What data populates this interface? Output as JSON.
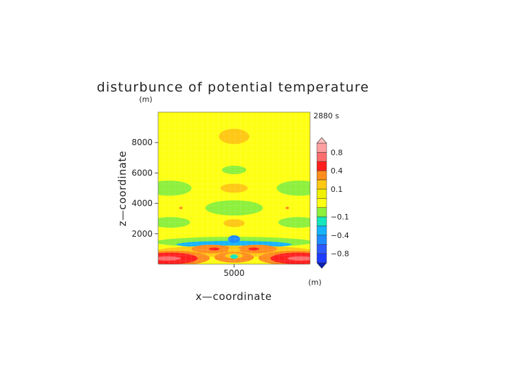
{
  "chart_data": {
    "type": "heatmap",
    "title": "disturbunce of potential temperature",
    "xlabel": "x—coordinate",
    "ylabel": "z—coordinate",
    "x_unit": "(m)",
    "y_unit": "(m)",
    "time_label": "2880 s",
    "x_range": [
      0,
      10000
    ],
    "y_range": [
      0,
      10000
    ],
    "x_ticks": [
      {
        "value": 5000,
        "label": "5000"
      }
    ],
    "y_ticks": [
      {
        "value": 2000,
        "label": "2000"
      },
      {
        "value": 4000,
        "label": "4000"
      },
      {
        "value": 6000,
        "label": "6000"
      },
      {
        "value": 8000,
        "label": "8000"
      }
    ],
    "background_level": 0.0,
    "colorbar": {
      "levels": [
        {
          "lo": -1.0,
          "hi": -0.8,
          "color": "#1e3cff"
        },
        {
          "lo": -0.8,
          "hi": -0.6,
          "color": "#2d5aff"
        },
        {
          "lo": -0.6,
          "hi": -0.4,
          "color": "#1e8cff"
        },
        {
          "lo": -0.4,
          "hi": -0.2,
          "color": "#14b4ff"
        },
        {
          "lo": -0.2,
          "hi": -0.1,
          "color": "#14e6be"
        },
        {
          "lo": -0.1,
          "hi": -0.05,
          "color": "#8cf03c"
        },
        {
          "lo": -0.05,
          "hi": 0.05,
          "color": "#ffff14"
        },
        {
          "lo": 0.05,
          "hi": 0.1,
          "color": "#f0f000"
        },
        {
          "lo": 0.1,
          "hi": 0.2,
          "color": "#ffc814"
        },
        {
          "lo": 0.2,
          "hi": 0.4,
          "color": "#ff8c1e"
        },
        {
          "lo": 0.4,
          "hi": 0.6,
          "color": "#ff1e1e"
        },
        {
          "lo": 0.6,
          "hi": 0.8,
          "color": "#ff6e6e"
        },
        {
          "lo": 0.8,
          "hi": 1.0,
          "color": "#ffa0a0"
        }
      ],
      "over_color": "#ffbebe",
      "under_color": "#0a1eb4",
      "labels": [
        {
          "value": 0.8,
          "label": "0.8"
        },
        {
          "value": 0.4,
          "label": "0.4"
        },
        {
          "value": 0.1,
          "label": "0.1"
        },
        {
          "value": -0.1,
          "label": "−0.1"
        },
        {
          "value": -0.4,
          "label": "−0.4"
        },
        {
          "value": -0.8,
          "label": "−0.8"
        }
      ]
    },
    "features": [
      {
        "cx": 5000,
        "cy": 8400,
        "rx": 1000,
        "ry": 500,
        "value": 0.15
      },
      {
        "cx": 5000,
        "cy": 6200,
        "rx": 800,
        "ry": 280,
        "value": -0.08
      },
      {
        "cx": 5000,
        "cy": 5000,
        "rx": 900,
        "ry": 300,
        "value": 0.15
      },
      {
        "cx": 5000,
        "cy": 3700,
        "rx": 1900,
        "ry": 500,
        "value": -0.08
      },
      {
        "cx": 5000,
        "cy": 2700,
        "rx": 700,
        "ry": 260,
        "value": 0.15
      },
      {
        "cx": 700,
        "cy": 5000,
        "rx": 1500,
        "ry": 500,
        "value": -0.08
      },
      {
        "cx": 9300,
        "cy": 5000,
        "rx": 1500,
        "ry": 500,
        "value": -0.08
      },
      {
        "cx": 800,
        "cy": 2750,
        "rx": 1300,
        "ry": 350,
        "value": -0.08
      },
      {
        "cx": 9200,
        "cy": 2750,
        "rx": 1300,
        "ry": 350,
        "value": -0.08
      },
      {
        "cx": 1500,
        "cy": 3700,
        "rx": 120,
        "ry": 80,
        "value": 0.3
      },
      {
        "cx": 8500,
        "cy": 3700,
        "rx": 120,
        "ry": 80,
        "value": 0.3
      },
      {
        "cx": 5000,
        "cy": 1450,
        "rx": 5200,
        "ry": 350,
        "value": -0.08
      },
      {
        "cx": 5000,
        "cy": 1300,
        "rx": 3800,
        "ry": 230,
        "value": -0.25
      },
      {
        "cx": 5000,
        "cy": 1650,
        "rx": 400,
        "ry": 250,
        "value": -0.5
      },
      {
        "cx": 5000,
        "cy": 850,
        "rx": 5200,
        "ry": 380,
        "value": 0.15
      },
      {
        "cx": 3500,
        "cy": 1000,
        "rx": 1300,
        "ry": 280,
        "value": 0.3
      },
      {
        "cx": 6500,
        "cy": 1000,
        "rx": 1300,
        "ry": 280,
        "value": 0.3
      },
      {
        "cx": 3700,
        "cy": 1000,
        "rx": 350,
        "ry": 100,
        "value": 0.5
      },
      {
        "cx": 6300,
        "cy": 1000,
        "rx": 350,
        "ry": 100,
        "value": 0.5
      },
      {
        "cx": 5000,
        "cy": 950,
        "rx": 400,
        "ry": 180,
        "value": 0.15
      },
      {
        "cx": 1000,
        "cy": 400,
        "rx": 2400,
        "ry": 480,
        "value": 0.3
      },
      {
        "cx": 9000,
        "cy": 400,
        "rx": 2400,
        "ry": 480,
        "value": 0.3
      },
      {
        "cx": 800,
        "cy": 380,
        "rx": 1800,
        "ry": 380,
        "value": 0.5
      },
      {
        "cx": 9200,
        "cy": 380,
        "rx": 1800,
        "ry": 380,
        "value": 0.5
      },
      {
        "cx": 600,
        "cy": 380,
        "rx": 900,
        "ry": 140,
        "value": 0.7
      },
      {
        "cx": 9400,
        "cy": 380,
        "rx": 900,
        "ry": 140,
        "value": 0.7
      },
      {
        "cx": 5000,
        "cy": 450,
        "rx": 1300,
        "ry": 350,
        "value": 0.3
      },
      {
        "cx": 5000,
        "cy": 550,
        "rx": 600,
        "ry": 180,
        "value": 0.15
      },
      {
        "cx": 5000,
        "cy": 500,
        "rx": 250,
        "ry": 150,
        "value": -0.15
      }
    ]
  }
}
